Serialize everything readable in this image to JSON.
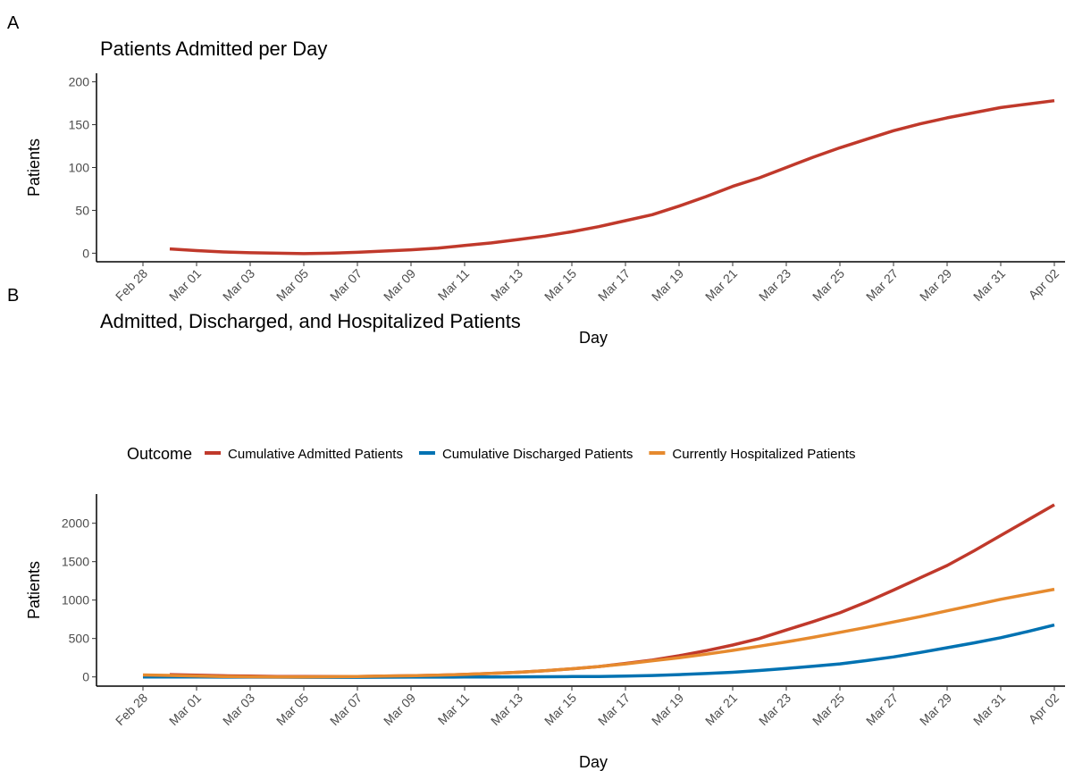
{
  "chart_data": [
    {
      "type": "line",
      "panel": "A",
      "title": "Patients Admitted per Day",
      "x_label": "Day",
      "y_label": "Patients",
      "categories": [
        "Feb 28",
        null,
        "Mar 01",
        null,
        "Mar 03",
        null,
        "Mar 05",
        null,
        "Mar 07",
        null,
        "Mar 09",
        null,
        "Mar 11",
        null,
        "Mar 13",
        null,
        "Mar 15",
        null,
        "Mar 17",
        null,
        "Mar 19",
        null,
        "Mar 21",
        null,
        "Mar 23",
        null,
        "Mar 25",
        null,
        "Mar 27",
        null,
        "Mar 29",
        null,
        "Mar 31",
        null,
        "Apr 02"
      ],
      "series": [
        {
          "name": "Patients Admitted",
          "color": "#c0392b",
          "values": [
            null,
            5,
            3,
            1.5,
            0.5,
            0,
            -0.5,
            0,
            1,
            2.5,
            4,
            6,
            9,
            12,
            16,
            20,
            25,
            31,
            38,
            45,
            55,
            66,
            78,
            88,
            100,
            112,
            123,
            133,
            143,
            151,
            158,
            164,
            170,
            174,
            178
          ]
        }
      ],
      "ylim": [
        -10,
        210
      ],
      "yticks": [
        0,
        50,
        100,
        150,
        200
      ]
    },
    {
      "type": "line",
      "panel": "B",
      "title": "Admitted, Discharged, and Hospitalized Patients",
      "x_label": "Day",
      "y_label": "Patients",
      "legend_title": "Outcome",
      "legend": "top",
      "categories": [
        "Feb 28",
        null,
        "Mar 01",
        null,
        "Mar 03",
        null,
        "Mar 05",
        null,
        "Mar 07",
        null,
        "Mar 09",
        null,
        "Mar 11",
        null,
        "Mar 13",
        null,
        "Mar 15",
        null,
        "Mar 17",
        null,
        "Mar 19",
        null,
        "Mar 21",
        null,
        "Mar 23",
        null,
        "Mar 25",
        null,
        "Mar 27",
        null,
        "Mar 29",
        null,
        "Mar 31",
        null,
        "Apr 02"
      ],
      "series": [
        {
          "name": "Cumulative Admitted Patients",
          "color": "#c0392b",
          "values": [
            null,
            30,
            22,
            15,
            10,
            6,
            4,
            4,
            6,
            10,
            15,
            22,
            32,
            45,
            60,
            80,
            105,
            135,
            175,
            220,
            275,
            340,
            415,
            500,
            610,
            720,
            835,
            975,
            1130,
            1290,
            1450,
            1640,
            1840,
            2040,
            2240
          ]
        },
        {
          "name": "Cumulative Discharged Patients",
          "color": "#0072b2",
          "values": [
            0,
            0,
            -1,
            -2,
            -3,
            -4,
            -5,
            -5,
            -5,
            -4,
            -3,
            -2,
            -1,
            0,
            1,
            2,
            4,
            6,
            10,
            18,
            30,
            44,
            60,
            83,
            110,
            138,
            170,
            213,
            260,
            318,
            380,
            443,
            510,
            590,
            675
          ]
        },
        {
          "name": "Currently Hospitalized Patients",
          "color": "#e68a2e",
          "values": [
            25,
            20,
            12,
            6,
            2,
            0,
            0,
            2,
            5,
            10,
            15,
            22,
            32,
            45,
            60,
            80,
            105,
            135,
            170,
            210,
            250,
            295,
            345,
            400,
            455,
            515,
            580,
            645,
            715,
            785,
            860,
            935,
            1010,
            1075,
            1140
          ]
        }
      ],
      "ylim": [
        -120,
        2380
      ],
      "yticks": [
        0,
        500,
        1000,
        1500,
        2000
      ]
    }
  ]
}
